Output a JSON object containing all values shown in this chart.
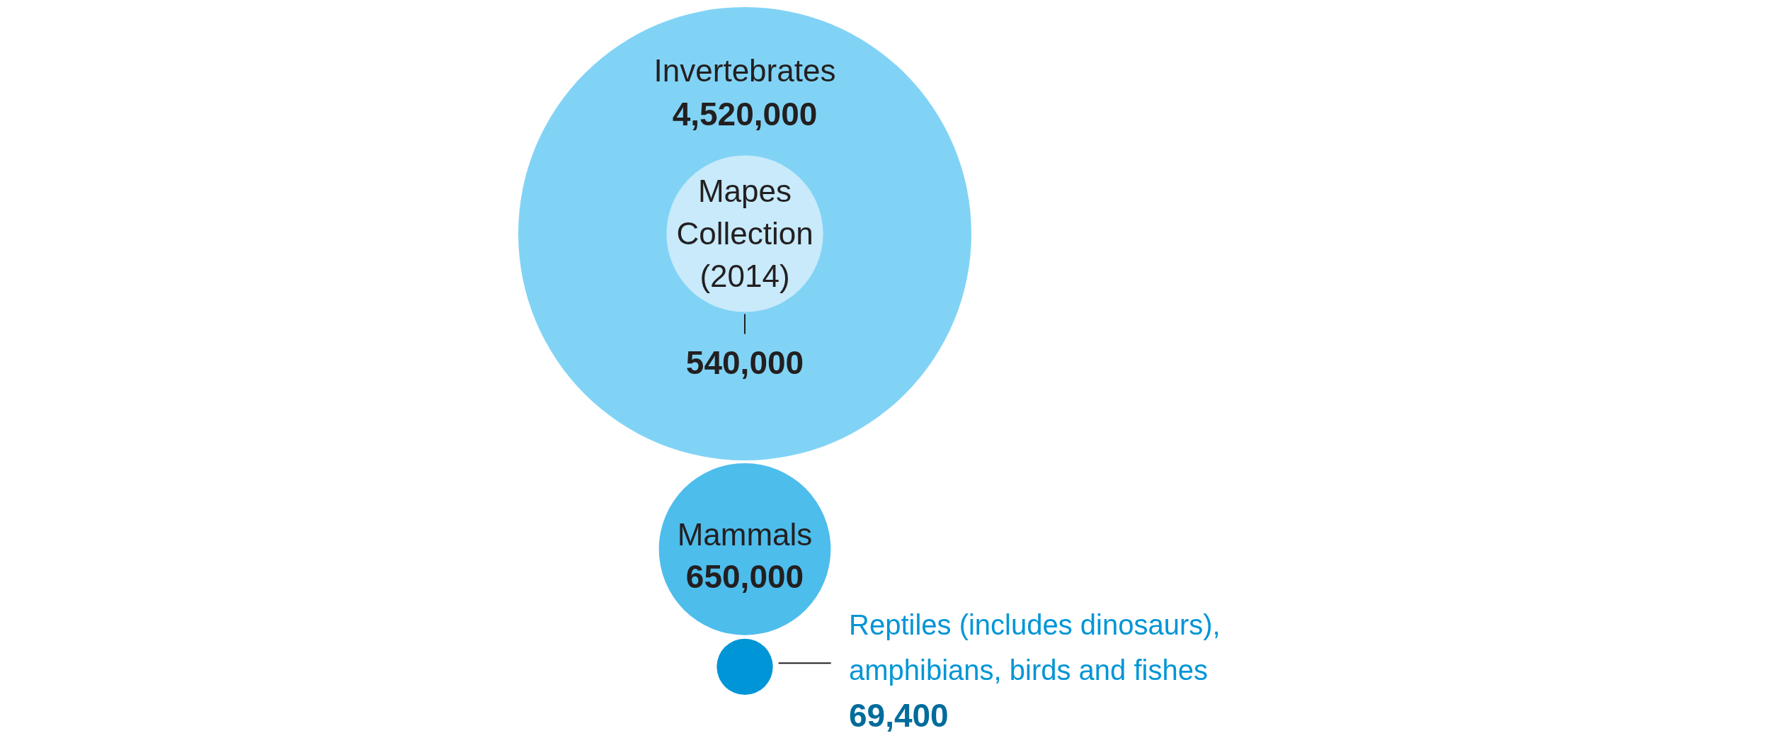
{
  "chart_data": {
    "type": "other",
    "categories": [
      "Invertebrates",
      "Mapes Collection (2014)",
      "Mammals",
      "Reptiles (includes dinosaurs), amphibians, birds and fishes"
    ],
    "values": [
      4520000,
      540000,
      650000,
      69400
    ],
    "colors": [
      "#81d3f5",
      "#c8eafb",
      "#4dbdec",
      "#0095d6"
    ],
    "value_labels": [
      "4,520,000",
      "540,000",
      "650,000",
      "69,400"
    ]
  }
}
